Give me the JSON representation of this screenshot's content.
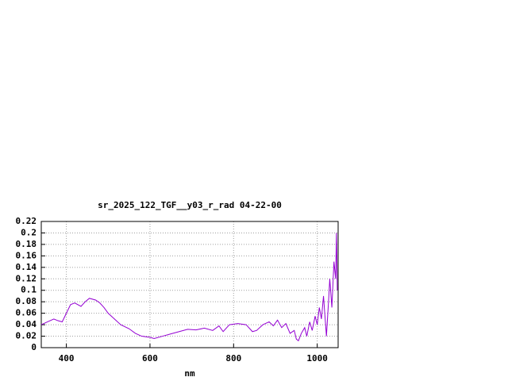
{
  "chart_data": {
    "type": "line",
    "title": "sr_2025_122_TGF__y03_r_rad 04-22-00",
    "x_label": "nm",
    "xlim": [
      340,
      1050
    ],
    "xticks": [
      400,
      600,
      800,
      1000
    ],
    "ylim": [
      0,
      0.22
    ],
    "yticks": [
      0,
      0.02,
      0.04,
      0.06,
      0.08,
      0.1,
      0.12,
      0.14,
      0.16,
      0.18,
      0.2,
      0.22
    ],
    "grid": true,
    "series": [
      {
        "color": "#9400d3",
        "x": [
          340,
          355,
          370,
          380,
          390,
          400,
          410,
          420,
          435,
          445,
          455,
          470,
          480,
          490,
          500,
          515,
          530,
          550,
          565,
          580,
          600,
          610,
          630,
          650,
          670,
          690,
          710,
          730,
          750,
          765,
          775,
          790,
          810,
          830,
          845,
          855,
          870,
          885,
          895,
          905,
          915,
          925,
          935,
          945,
          950,
          955,
          962,
          970,
          975,
          982,
          988,
          995,
          1000,
          1005,
          1010,
          1015,
          1018,
          1022,
          1027,
          1030,
          1035,
          1040,
          1044,
          1046,
          1048
        ],
        "values": [
          0.04,
          0.045,
          0.05,
          0.047,
          0.045,
          0.06,
          0.075,
          0.078,
          0.072,
          0.08,
          0.086,
          0.083,
          0.078,
          0.07,
          0.06,
          0.05,
          0.04,
          0.033,
          0.025,
          0.02,
          0.018,
          0.016,
          0.02,
          0.024,
          0.028,
          0.032,
          0.031,
          0.034,
          0.03,
          0.038,
          0.028,
          0.04,
          0.042,
          0.04,
          0.028,
          0.03,
          0.04,
          0.045,
          0.038,
          0.048,
          0.035,
          0.042,
          0.025,
          0.03,
          0.015,
          0.012,
          0.025,
          0.035,
          0.02,
          0.045,
          0.03,
          0.055,
          0.04,
          0.07,
          0.05,
          0.09,
          0.06,
          0.02,
          0.08,
          0.12,
          0.07,
          0.15,
          0.12,
          0.2,
          0.1
        ]
      }
    ]
  }
}
